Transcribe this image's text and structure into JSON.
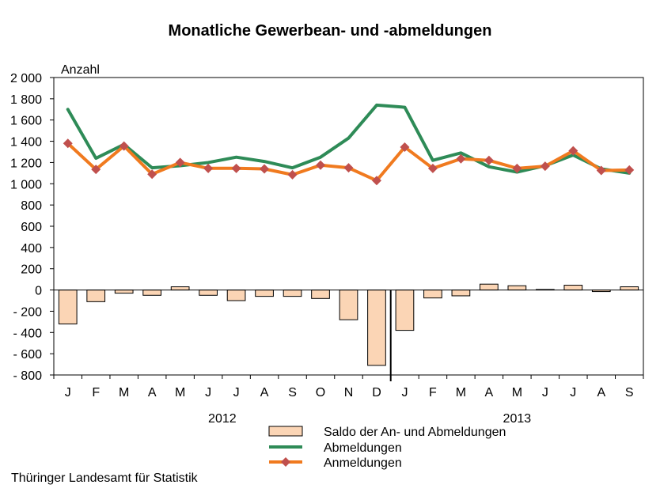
{
  "source": "Thüringer Landesamt für Statistik",
  "chart_data": {
    "type": "bar+line",
    "title": "Monatliche Gewerbean- und -abmeldungen",
    "ylabel": "Anzahl",
    "xlabel": "",
    "ylim": [
      -800,
      2000
    ],
    "yticks": [
      -800,
      -600,
      -400,
      -200,
      0,
      200,
      400,
      600,
      800,
      1000,
      1200,
      1400,
      1600,
      1800,
      2000
    ],
    "ytick_labels": [
      "- 800",
      "- 600",
      "- 400",
      "- 200",
      "0",
      "200",
      "400",
      "600",
      "800",
      "1 000",
      "1 200",
      "1 400",
      "1 600",
      "1 800",
      "2 000"
    ],
    "categories": [
      "J",
      "F",
      "M",
      "A",
      "M",
      "J",
      "J",
      "A",
      "S",
      "O",
      "N",
      "D",
      "J",
      "F",
      "M",
      "A",
      "M",
      "J",
      "J",
      "A",
      "S"
    ],
    "year_groups": [
      {
        "label": "2012",
        "start": 0,
        "end": 11
      },
      {
        "label": "2013",
        "start": 12,
        "end": 20
      }
    ],
    "grid": false,
    "legend_position": "bottom-center",
    "series": [
      {
        "name": "Saldo der An- und Abmeldungen",
        "kind": "bar",
        "color": "#FBD5B5",
        "edge_color": "#000000",
        "values": [
          -320,
          -110,
          -30,
          -50,
          30,
          -50,
          -100,
          -60,
          -60,
          -80,
          -280,
          -710,
          -380,
          -75,
          -55,
          55,
          40,
          5,
          45,
          -15,
          30
        ]
      },
      {
        "name": "Abmeldungen",
        "kind": "line",
        "color": "#2E8B57",
        "values": [
          1700,
          1240,
          1370,
          1150,
          1170,
          1200,
          1250,
          1210,
          1150,
          1250,
          1430,
          1740,
          1720,
          1220,
          1290,
          1160,
          1110,
          1170,
          1270,
          1140,
          1100
        ]
      },
      {
        "name": "Anmeldungen",
        "kind": "line",
        "color": "#F07A1F",
        "marker_color": "#C0504D",
        "values": [
          1380,
          1135,
          1355,
          1090,
          1200,
          1145,
          1145,
          1140,
          1085,
          1175,
          1150,
          1030,
          1345,
          1145,
          1235,
          1220,
          1145,
          1165,
          1310,
          1125,
          1130
        ]
      }
    ]
  }
}
